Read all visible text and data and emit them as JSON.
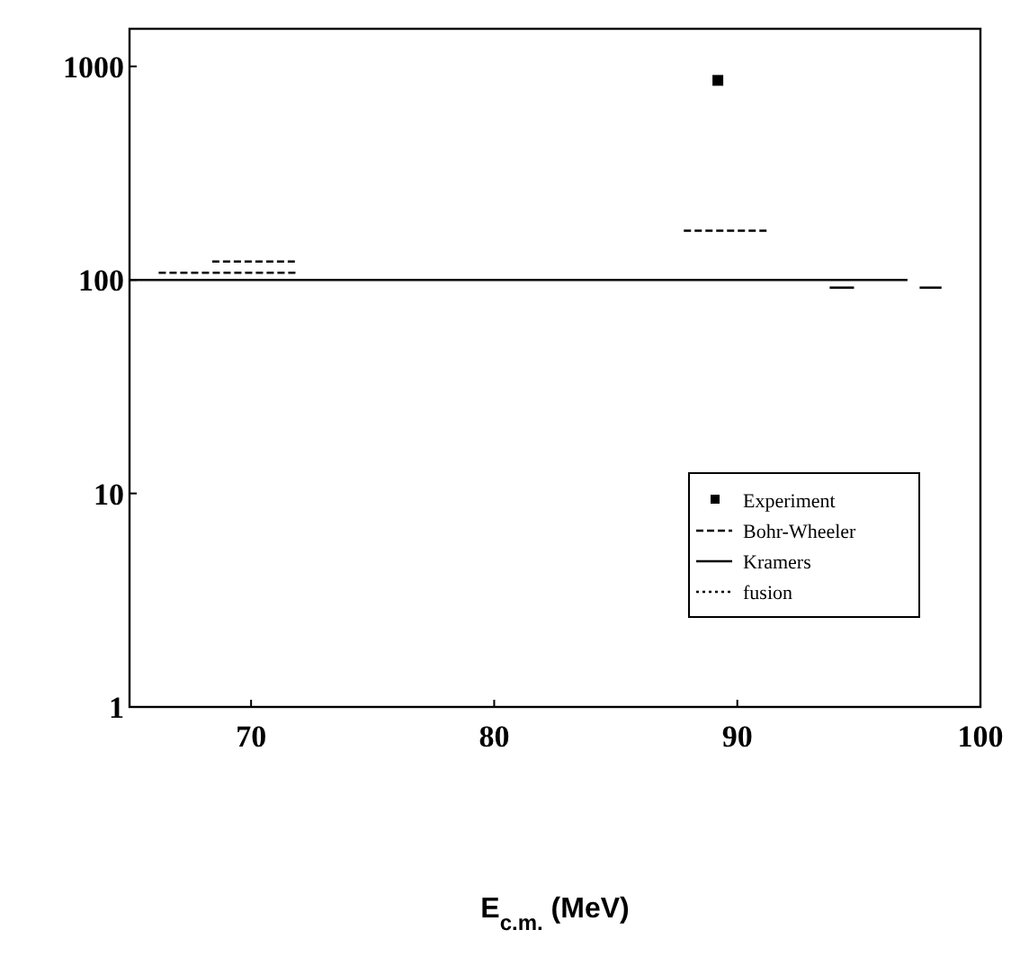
{
  "chart_data": {
    "type": "line",
    "xlabel": "E$_{c.m.}$ (MeV)",
    "log": "y",
    "xlim": [
      65,
      100
    ],
    "xticks": [
      70,
      80,
      90,
      100
    ],
    "ylim": [
      1,
      1500
    ],
    "yticks": [
      1,
      10,
      100,
      1000
    ],
    "legend": "bottom right",
    "grid": false,
    "series": [
      {
        "name": "Experiment",
        "type": "scatter",
        "marker": "square",
        "color": "#000000",
        "x": [
          89.2
        ],
        "values": [
          860
        ]
      },
      {
        "name": "Bohr-Wheeler",
        "line_style": "dashed",
        "color": "#000000",
        "x": [
          66.2,
          71.9,
          72,
          87.8,
          91.3
        ],
        "values": [
          108,
          108,
          null,
          170,
          170
        ]
      },
      {
        "line_style": "dashed",
        "color": "#000000",
        "x": [
          68.4,
          71.8
        ],
        "values": [
          122,
          122
        ]
      },
      {
        "name": "Kramers",
        "line_style": "solid",
        "color": "#000000",
        "x": [
          65,
          97
        ],
        "values": [
          100,
          100
        ]
      },
      {
        "line_style": "solid",
        "color": "#000000",
        "x": [
          93.8,
          94.8
        ],
        "values": [
          92,
          92
        ]
      },
      {
        "line_style": "solid",
        "color": "#000000",
        "x": [
          97.5,
          98.4
        ],
        "values": [
          92,
          92
        ]
      },
      {
        "name": "fusion",
        "line_style": "dotted",
        "color": "#000000"
      }
    ]
  }
}
